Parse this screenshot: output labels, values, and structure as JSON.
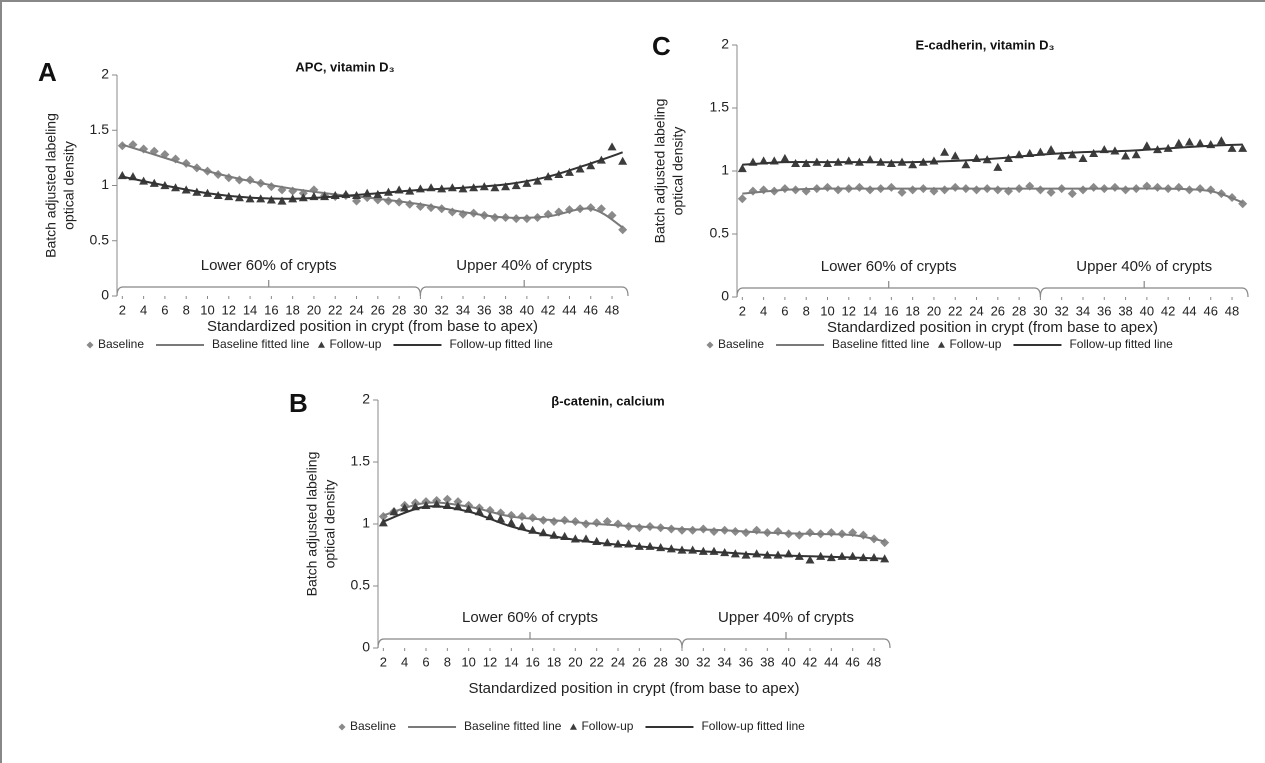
{
  "chart_data": [
    {
      "type": "line",
      "panel_label": "A",
      "title": "APC, vitamin D₃",
      "ylabel": [
        "Batch adjusted labeling",
        "optical density"
      ],
      "xlabel": "Standardized position in crypt (from base to apex)",
      "x": [
        2,
        3,
        4,
        5,
        6,
        7,
        8,
        9,
        10,
        11,
        12,
        13,
        14,
        15,
        16,
        17,
        18,
        19,
        20,
        21,
        22,
        23,
        24,
        25,
        26,
        27,
        28,
        29,
        30,
        31,
        32,
        33,
        34,
        35,
        36,
        37,
        38,
        39,
        40,
        41,
        42,
        43,
        44,
        45,
        46,
        47,
        48,
        49
      ],
      "xlim": [
        1.5,
        49.5
      ],
      "xticks": [
        2,
        4,
        6,
        8,
        10,
        12,
        14,
        16,
        18,
        20,
        22,
        24,
        26,
        28,
        30,
        32,
        34,
        36,
        38,
        40,
        42,
        44,
        46,
        48
      ],
      "ylim": [
        0,
        2
      ],
      "yticks": [
        0,
        0.5,
        1,
        1.5,
        2
      ],
      "annotations": [
        {
          "text": "Lower 60% of crypts",
          "x": [
            1.5,
            30
          ]
        },
        {
          "text": "Upper 40% of crypts",
          "x": [
            30,
            49.5
          ]
        }
      ],
      "series": [
        {
          "name": "Baseline",
          "marker": "diamond",
          "color": "#8a8a8a",
          "values": [
            1.36,
            1.37,
            1.33,
            1.31,
            1.28,
            1.24,
            1.2,
            1.16,
            1.13,
            1.1,
            1.07,
            1.05,
            1.05,
            1.02,
            0.99,
            0.96,
            0.95,
            0.93,
            0.96,
            0.91,
            0.9,
            0.91,
            0.86,
            0.89,
            0.87,
            0.86,
            0.85,
            0.83,
            0.81,
            0.8,
            0.79,
            0.76,
            0.74,
            0.75,
            0.73,
            0.71,
            0.71,
            0.7,
            0.7,
            0.71,
            0.74,
            0.76,
            0.78,
            0.79,
            0.8,
            0.79,
            0.73,
            0.6
          ]
        },
        {
          "name": "Baseline fitted line",
          "marker": "line",
          "color": "#7a7a7a",
          "x": [
            2,
            6,
            10,
            14,
            18,
            22,
            26,
            30,
            34,
            38,
            42,
            46,
            49
          ],
          "values": [
            1.37,
            1.25,
            1.13,
            1.04,
            0.97,
            0.92,
            0.88,
            0.83,
            0.76,
            0.71,
            0.72,
            0.79,
            0.62
          ]
        },
        {
          "name": "Follow-up",
          "marker": "triangle",
          "color": "#3c3c3c",
          "values": [
            1.09,
            1.08,
            1.04,
            1.02,
            1.0,
            0.98,
            0.96,
            0.94,
            0.93,
            0.91,
            0.9,
            0.89,
            0.88,
            0.88,
            0.87,
            0.86,
            0.88,
            0.89,
            0.9,
            0.9,
            0.91,
            0.92,
            0.91,
            0.93,
            0.92,
            0.94,
            0.96,
            0.95,
            0.97,
            0.98,
            0.97,
            0.98,
            0.97,
            0.98,
            0.99,
            0.98,
            0.99,
            1.0,
            1.02,
            1.04,
            1.08,
            1.1,
            1.12,
            1.15,
            1.18,
            1.23,
            1.35,
            1.22
          ]
        },
        {
          "name": "Follow-up fitted line",
          "marker": "line",
          "color": "#333333",
          "x": [
            2,
            6,
            10,
            14,
            18,
            22,
            26,
            30,
            34,
            38,
            42,
            46,
            49
          ],
          "values": [
            1.08,
            1.0,
            0.93,
            0.89,
            0.88,
            0.9,
            0.93,
            0.96,
            0.98,
            1.01,
            1.08,
            1.2,
            1.3
          ]
        }
      ]
    },
    {
      "type": "line",
      "panel_label": "C",
      "title": "E-cadherin, vitamin D₃",
      "ylabel": [
        "Batch adjusted labeling",
        "optical density"
      ],
      "xlabel": "Standardized position in crypt (from base to apex)",
      "x": [
        2,
        3,
        4,
        5,
        6,
        7,
        8,
        9,
        10,
        11,
        12,
        13,
        14,
        15,
        16,
        17,
        18,
        19,
        20,
        21,
        22,
        23,
        24,
        25,
        26,
        27,
        28,
        29,
        30,
        31,
        32,
        33,
        34,
        35,
        36,
        37,
        38,
        39,
        40,
        41,
        42,
        43,
        44,
        45,
        46,
        47,
        48,
        49
      ],
      "xlim": [
        1.5,
        49.5
      ],
      "xticks": [
        2,
        4,
        6,
        8,
        10,
        12,
        14,
        16,
        18,
        20,
        22,
        24,
        26,
        28,
        30,
        32,
        34,
        36,
        38,
        40,
        42,
        44,
        46,
        48
      ],
      "ylim": [
        0,
        2
      ],
      "yticks": [
        0,
        0.5,
        1,
        1.5,
        2
      ],
      "annotations": [
        {
          "text": "Lower 60% of crypts",
          "x": [
            1.5,
            30
          ]
        },
        {
          "text": "Upper 40% of crypts",
          "x": [
            30,
            49.5
          ]
        }
      ],
      "series": [
        {
          "name": "Baseline",
          "marker": "diamond",
          "color": "#8a8a8a",
          "values": [
            0.78,
            0.84,
            0.85,
            0.84,
            0.86,
            0.85,
            0.84,
            0.86,
            0.87,
            0.85,
            0.86,
            0.87,
            0.85,
            0.86,
            0.87,
            0.83,
            0.85,
            0.86,
            0.84,
            0.85,
            0.87,
            0.86,
            0.85,
            0.86,
            0.85,
            0.84,
            0.86,
            0.88,
            0.85,
            0.83,
            0.86,
            0.82,
            0.85,
            0.87,
            0.86,
            0.87,
            0.85,
            0.86,
            0.88,
            0.87,
            0.86,
            0.87,
            0.85,
            0.86,
            0.85,
            0.82,
            0.79,
            0.74
          ]
        },
        {
          "name": "Baseline fitted line",
          "marker": "line",
          "color": "#7a7a7a",
          "x": [
            2,
            6,
            10,
            14,
            18,
            22,
            26,
            30,
            34,
            38,
            42,
            46,
            49
          ],
          "values": [
            0.82,
            0.85,
            0.86,
            0.86,
            0.86,
            0.86,
            0.86,
            0.86,
            0.86,
            0.86,
            0.86,
            0.84,
            0.75
          ]
        },
        {
          "name": "Follow-up",
          "marker": "triangle",
          "color": "#3c3c3c",
          "values": [
            1.02,
            1.07,
            1.08,
            1.08,
            1.1,
            1.06,
            1.06,
            1.07,
            1.06,
            1.07,
            1.08,
            1.07,
            1.09,
            1.07,
            1.06,
            1.07,
            1.05,
            1.07,
            1.08,
            1.15,
            1.12,
            1.05,
            1.1,
            1.09,
            1.03,
            1.1,
            1.13,
            1.14,
            1.15,
            1.17,
            1.12,
            1.13,
            1.1,
            1.14,
            1.17,
            1.16,
            1.12,
            1.13,
            1.2,
            1.17,
            1.18,
            1.22,
            1.23,
            1.22,
            1.21,
            1.24,
            1.18,
            1.18
          ]
        },
        {
          "name": "Follow-up fitted line",
          "marker": "line",
          "color": "#333333",
          "x": [
            2,
            6,
            10,
            14,
            18,
            22,
            26,
            30,
            34,
            38,
            42,
            46,
            49
          ],
          "values": [
            1.05,
            1.07,
            1.07,
            1.07,
            1.07,
            1.08,
            1.1,
            1.13,
            1.15,
            1.16,
            1.18,
            1.2,
            1.21
          ]
        }
      ]
    },
    {
      "type": "line",
      "panel_label": "B",
      "title": "β-catenin, calcium",
      "ylabel": [
        "Batch adjusted labeling",
        "optical density"
      ],
      "xlabel": "Standardized position in crypt (from base to apex)",
      "x": [
        2,
        3,
        4,
        5,
        6,
        7,
        8,
        9,
        10,
        11,
        12,
        13,
        14,
        15,
        16,
        17,
        18,
        19,
        20,
        21,
        22,
        23,
        24,
        25,
        26,
        27,
        28,
        29,
        30,
        31,
        32,
        33,
        34,
        35,
        36,
        37,
        38,
        39,
        40,
        41,
        42,
        43,
        44,
        45,
        46,
        47,
        48,
        49
      ],
      "xlim": [
        1.5,
        49.5
      ],
      "xticks": [
        2,
        4,
        6,
        8,
        10,
        12,
        14,
        16,
        18,
        20,
        22,
        24,
        26,
        28,
        30,
        32,
        34,
        36,
        38,
        40,
        42,
        44,
        46,
        48
      ],
      "ylim": [
        0,
        2
      ],
      "yticks": [
        0,
        0.5,
        1,
        1.5,
        2
      ],
      "annotations": [
        {
          "text": "Lower 60% of crypts",
          "x": [
            1.5,
            30
          ]
        },
        {
          "text": "Upper 40% of crypts",
          "x": [
            30,
            49.5
          ]
        }
      ],
      "series": [
        {
          "name": "Baseline",
          "marker": "diamond",
          "color": "#8a8a8a",
          "values": [
            1.06,
            1.1,
            1.15,
            1.17,
            1.18,
            1.19,
            1.2,
            1.18,
            1.15,
            1.13,
            1.11,
            1.09,
            1.07,
            1.06,
            1.05,
            1.03,
            1.02,
            1.03,
            1.02,
            1.0,
            1.01,
            1.02,
            1.0,
            0.98,
            0.97,
            0.98,
            0.97,
            0.96,
            0.95,
            0.95,
            0.96,
            0.94,
            0.95,
            0.94,
            0.93,
            0.95,
            0.93,
            0.94,
            0.92,
            0.91,
            0.93,
            0.92,
            0.93,
            0.92,
            0.93,
            0.91,
            0.88,
            0.85
          ]
        },
        {
          "name": "Baseline fitted line",
          "marker": "line",
          "color": "#7a7a7a",
          "x": [
            2,
            6,
            10,
            14,
            18,
            22,
            26,
            30,
            34,
            38,
            42,
            46,
            49
          ],
          "values": [
            1.07,
            1.17,
            1.14,
            1.06,
            1.03,
            1.0,
            0.98,
            0.96,
            0.95,
            0.93,
            0.92,
            0.91,
            0.86
          ]
        },
        {
          "name": "Follow-up",
          "marker": "triangle",
          "color": "#3c3c3c",
          "values": [
            1.01,
            1.1,
            1.13,
            1.14,
            1.15,
            1.16,
            1.15,
            1.14,
            1.12,
            1.1,
            1.06,
            1.04,
            1.01,
            0.98,
            0.95,
            0.93,
            0.91,
            0.9,
            0.88,
            0.88,
            0.86,
            0.85,
            0.84,
            0.84,
            0.82,
            0.82,
            0.81,
            0.8,
            0.79,
            0.79,
            0.78,
            0.78,
            0.77,
            0.76,
            0.75,
            0.76,
            0.75,
            0.75,
            0.76,
            0.74,
            0.71,
            0.74,
            0.73,
            0.74,
            0.74,
            0.73,
            0.73,
            0.72
          ]
        },
        {
          "name": "Follow-up fitted line",
          "marker": "line",
          "color": "#333333",
          "x": [
            2,
            6,
            10,
            14,
            18,
            22,
            26,
            30,
            34,
            38,
            42,
            46,
            49
          ],
          "values": [
            1.02,
            1.14,
            1.1,
            0.98,
            0.9,
            0.85,
            0.82,
            0.79,
            0.77,
            0.75,
            0.74,
            0.73,
            0.72
          ]
        }
      ]
    }
  ]
}
